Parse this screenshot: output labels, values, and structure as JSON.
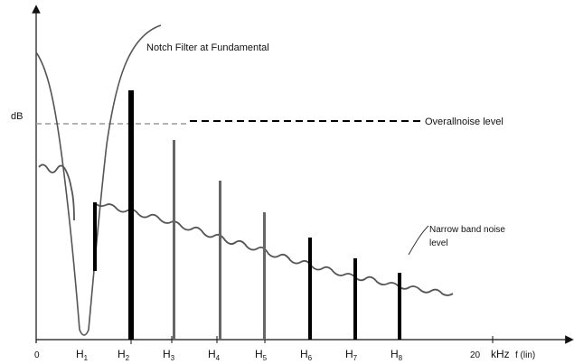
{
  "diagram": {
    "y_axis_label": "dB",
    "notch_filter_label": "Notch Filter at Fundamental",
    "overall_noise_label": "Overallnoise level",
    "narrow_band_label_line1": "Narrow band noise",
    "narrow_band_label_line2": "level",
    "x_origin_label": "0",
    "x_20_label": "20",
    "x_unit_label": "kHz",
    "x_unit_suffix": "f (lin)",
    "harmonics": [
      {
        "base": "H",
        "sub": "1"
      },
      {
        "base": "H",
        "sub": "2"
      },
      {
        "base": "H",
        "sub": "3"
      },
      {
        "base": "H",
        "sub": "4"
      },
      {
        "base": "H",
        "sub": "5"
      },
      {
        "base": "H",
        "sub": "6"
      },
      {
        "base": "H",
        "sub": "7"
      },
      {
        "base": "H",
        "sub": "8"
      }
    ]
  },
  "colors": {
    "axis": "#111111",
    "bar_dark": "#000000",
    "bar_gray": "#666666",
    "noise_curve": "#555555",
    "notch_curve": "#555555",
    "dashed_gray": "#9a9a9a",
    "dashed_black": "#000000"
  }
}
